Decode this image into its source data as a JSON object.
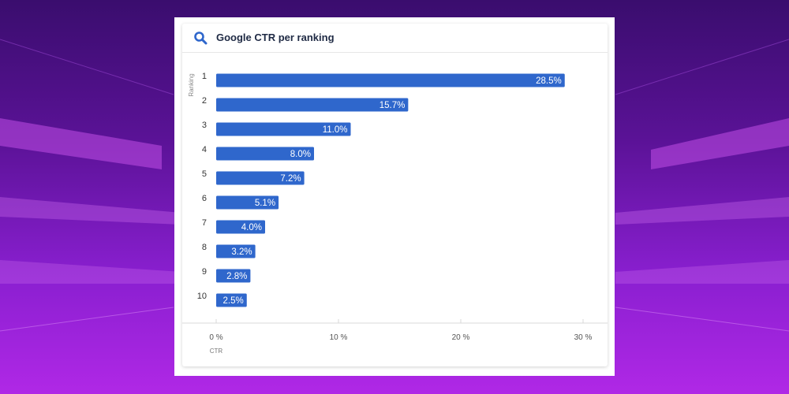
{
  "colors": {
    "bar": "#2f67cc",
    "bar_label": "#ffffff",
    "grid": "#d9d9d9",
    "axis_text": "#555555",
    "title": "#1f2a44",
    "icon": "#2f67cc"
  },
  "card": {
    "title": "Google CTR per ranking",
    "icon": "search-icon"
  },
  "chart_data": {
    "type": "bar",
    "orientation": "horizontal",
    "title": "Google CTR per ranking",
    "ylabel": "Ranking",
    "xlabel": "CTR",
    "categories": [
      "1",
      "2",
      "3",
      "4",
      "5",
      "6",
      "7",
      "8",
      "9",
      "10"
    ],
    "values": [
      28.5,
      15.7,
      11.0,
      8.0,
      7.2,
      5.1,
      4.0,
      3.2,
      2.8,
      2.5
    ],
    "value_labels": [
      "28.5%",
      "15.7%",
      "11.0%",
      "8.0%",
      "7.2%",
      "5.1%",
      "4.0%",
      "3.2%",
      "2.8%",
      "2.5%"
    ],
    "xlim": [
      0,
      30
    ],
    "xticks": [
      0,
      10,
      20,
      30
    ],
    "xtick_labels": [
      "0 %",
      "10 %",
      "20 %",
      "30 %"
    ],
    "grid": true,
    "legend": "none"
  }
}
